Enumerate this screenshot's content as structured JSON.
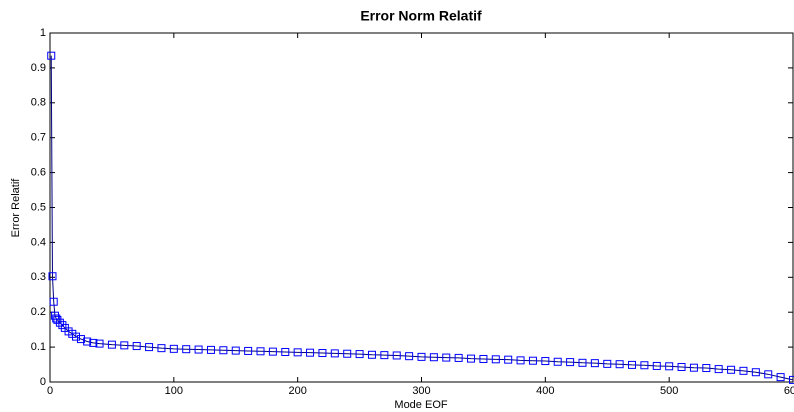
{
  "chart_data": {
    "type": "line",
    "title": "Error Norm Relatif",
    "xlabel": "Mode EOF",
    "ylabel": "Error Relatif",
    "x": [
      1,
      2,
      3,
      4,
      5,
      6,
      8,
      10,
      12,
      15,
      18,
      21,
      25,
      30,
      35,
      40,
      50,
      60,
      70,
      80,
      90,
      100,
      110,
      120,
      130,
      140,
      150,
      160,
      170,
      180,
      190,
      200,
      210,
      220,
      230,
      240,
      250,
      260,
      270,
      280,
      290,
      300,
      310,
      320,
      330,
      340,
      350,
      360,
      370,
      380,
      390,
      400,
      410,
      420,
      430,
      440,
      450,
      460,
      470,
      480,
      490,
      500,
      510,
      520,
      530,
      540,
      550,
      560,
      570,
      580,
      590,
      600
    ],
    "series": [
      {
        "color": "#0000ff",
        "values": [
          0.935,
          0.303,
          0.23,
          0.19,
          0.182,
          0.178,
          0.17,
          0.163,
          0.155,
          0.145,
          0.138,
          0.13,
          0.123,
          0.116,
          0.112,
          0.11,
          0.107,
          0.105,
          0.103,
          0.1,
          0.097,
          0.095,
          0.094,
          0.093,
          0.092,
          0.091,
          0.09,
          0.089,
          0.088,
          0.087,
          0.086,
          0.085,
          0.084,
          0.083,
          0.082,
          0.081,
          0.08,
          0.078,
          0.077,
          0.076,
          0.074,
          0.072,
          0.071,
          0.07,
          0.069,
          0.067,
          0.066,
          0.065,
          0.064,
          0.062,
          0.061,
          0.06,
          0.058,
          0.057,
          0.055,
          0.054,
          0.052,
          0.051,
          0.049,
          0.048,
          0.046,
          0.045,
          0.043,
          0.041,
          0.04,
          0.037,
          0.035,
          0.032,
          0.028,
          0.022,
          0.014,
          0.006
        ]
      }
    ],
    "xlim": [
      0,
      600
    ],
    "xticks": [
      0,
      100,
      200,
      300,
      400,
      500,
      600
    ],
    "ylim": [
      0,
      1
    ],
    "yticks": [
      0,
      0.1,
      0.2,
      0.3,
      0.4,
      0.5,
      0.6,
      0.7,
      0.8,
      0.9,
      1
    ],
    "grid": false,
    "marker": "square"
  }
}
